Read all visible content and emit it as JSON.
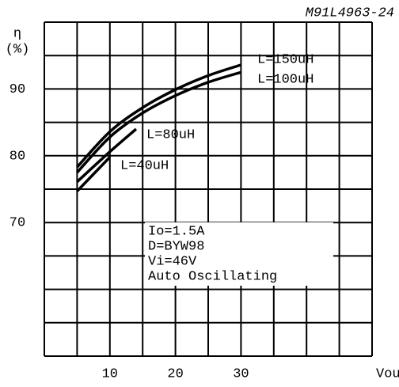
{
  "chart_data": {
    "type": "line",
    "code": "M91L4963-24",
    "y_label": "η",
    "y_unit": "(%)",
    "x_label": "Vout",
    "xlim": [
      0,
      50
    ],
    "ylim": [
      50,
      100
    ],
    "xticks": [
      10,
      20,
      30
    ],
    "yticks": [
      70,
      80,
      90
    ],
    "xgrid": [
      0,
      5,
      10,
      15,
      20,
      25,
      30,
      35,
      40,
      45,
      50
    ],
    "ygrid": [
      50,
      55,
      60,
      65,
      70,
      75,
      80,
      85,
      90,
      95,
      100
    ],
    "grid": true,
    "series": [
      {
        "name": "L=150uH",
        "color": "#000000",
        "x": [
          5,
          10,
          15,
          20,
          25,
          30
        ],
        "values": [
          78.3,
          83.6,
          87.2,
          89.9,
          92,
          93.6
        ]
      },
      {
        "name": "L=100uH",
        "color": "#000000",
        "x": [
          5,
          10,
          15,
          20,
          25,
          30
        ],
        "values": [
          77.5,
          82.8,
          86.4,
          89,
          91,
          92.5
        ]
      },
      {
        "name": "L=80uH",
        "color": "#000000",
        "x": [
          5,
          10,
          14
        ],
        "values": [
          76.1,
          80.6,
          84
        ]
      },
      {
        "name": "L=40uH",
        "color": "#000000",
        "x": [
          5,
          10
        ],
        "values": [
          74.7,
          79.8
        ]
      }
    ],
    "annotation": [
      "Io=1.5A",
      "D=BYW98",
      "Vi=46V",
      "Auto Oscillating"
    ]
  }
}
